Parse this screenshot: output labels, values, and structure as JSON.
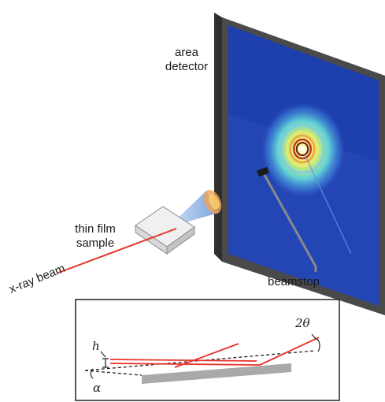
{
  "labels": {
    "area_detector_line1": "area",
    "area_detector_line2": "detector",
    "sample_line1": "thin film",
    "sample_line2": "sample",
    "beam": "x-ray beam",
    "beamstop": "beamstop"
  },
  "inset": {
    "h": "h",
    "alpha": "α",
    "two_theta": "2θ"
  },
  "colors": {
    "beam": "#e8312a",
    "detector_frame": "#4a4a4a",
    "detector_bg": "#1e3fae",
    "substrate": "#a9a9a9",
    "scatter_cone": "#5a8fd8"
  },
  "diffraction_rings": [
    {
      "color": "#7fc8f0"
    },
    {
      "color": "#f3e66b"
    },
    {
      "color": "#f6a13a"
    },
    {
      "color": "#c0392b"
    },
    {
      "color": "#5c1a12"
    }
  ]
}
